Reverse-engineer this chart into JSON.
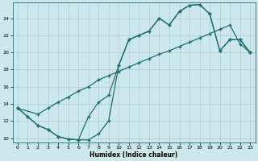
{
  "xlabel": "Humidex (Indice chaleur)",
  "xlim": [
    -0.5,
    23.5
  ],
  "ylim": [
    9.5,
    25.8
  ],
  "xticks": [
    0,
    1,
    2,
    3,
    4,
    5,
    6,
    7,
    8,
    9,
    10,
    11,
    12,
    13,
    14,
    15,
    16,
    17,
    18,
    19,
    20,
    21,
    22,
    23
  ],
  "yticks": [
    10,
    12,
    14,
    16,
    18,
    20,
    22,
    24
  ],
  "bg_color": "#cce8ec",
  "grid_color": "#aacdd4",
  "line_color": "#1e7070",
  "curve1_x": [
    0,
    1,
    2,
    3,
    4,
    5,
    6,
    7,
    8,
    9,
    10,
    11,
    12,
    13,
    14,
    15,
    16,
    17,
    18,
    19,
    20,
    21,
    22,
    23
  ],
  "curve1_y": [
    13.5,
    12.5,
    11.5,
    11.0,
    10.2,
    9.9,
    9.8,
    12.5,
    14.2,
    15.0,
    18.5,
    21.5,
    22.0,
    22.5,
    24.0,
    23.2,
    24.8,
    25.5,
    25.6,
    24.5,
    20.2,
    21.5,
    21.5,
    20.0
  ],
  "curve2_x": [
    0,
    2,
    3,
    4,
    5,
    6,
    7,
    8,
    9,
    10,
    11,
    12,
    13,
    14,
    15,
    16,
    17,
    18,
    19,
    20,
    21,
    22,
    23
  ],
  "curve2_y": [
    13.5,
    12.8,
    13.5,
    14.2,
    14.8,
    15.5,
    16.0,
    16.8,
    17.3,
    17.8,
    18.3,
    18.8,
    19.3,
    19.8,
    20.2,
    20.7,
    21.2,
    21.7,
    22.2,
    22.7,
    23.2,
    21.0,
    20.0
  ],
  "curve3_x": [
    0,
    1,
    2,
    3,
    4,
    5,
    6,
    7,
    8,
    9,
    10,
    11,
    12,
    13,
    14,
    15,
    16,
    17,
    18,
    19,
    20,
    21,
    22,
    23
  ],
  "curve3_y": [
    13.5,
    12.5,
    11.5,
    11.0,
    10.2,
    9.9,
    9.8,
    9.8,
    10.5,
    12.0,
    18.5,
    21.5,
    22.0,
    22.5,
    24.0,
    23.2,
    24.8,
    25.5,
    25.6,
    24.5,
    20.2,
    21.5,
    21.5,
    20.0
  ]
}
